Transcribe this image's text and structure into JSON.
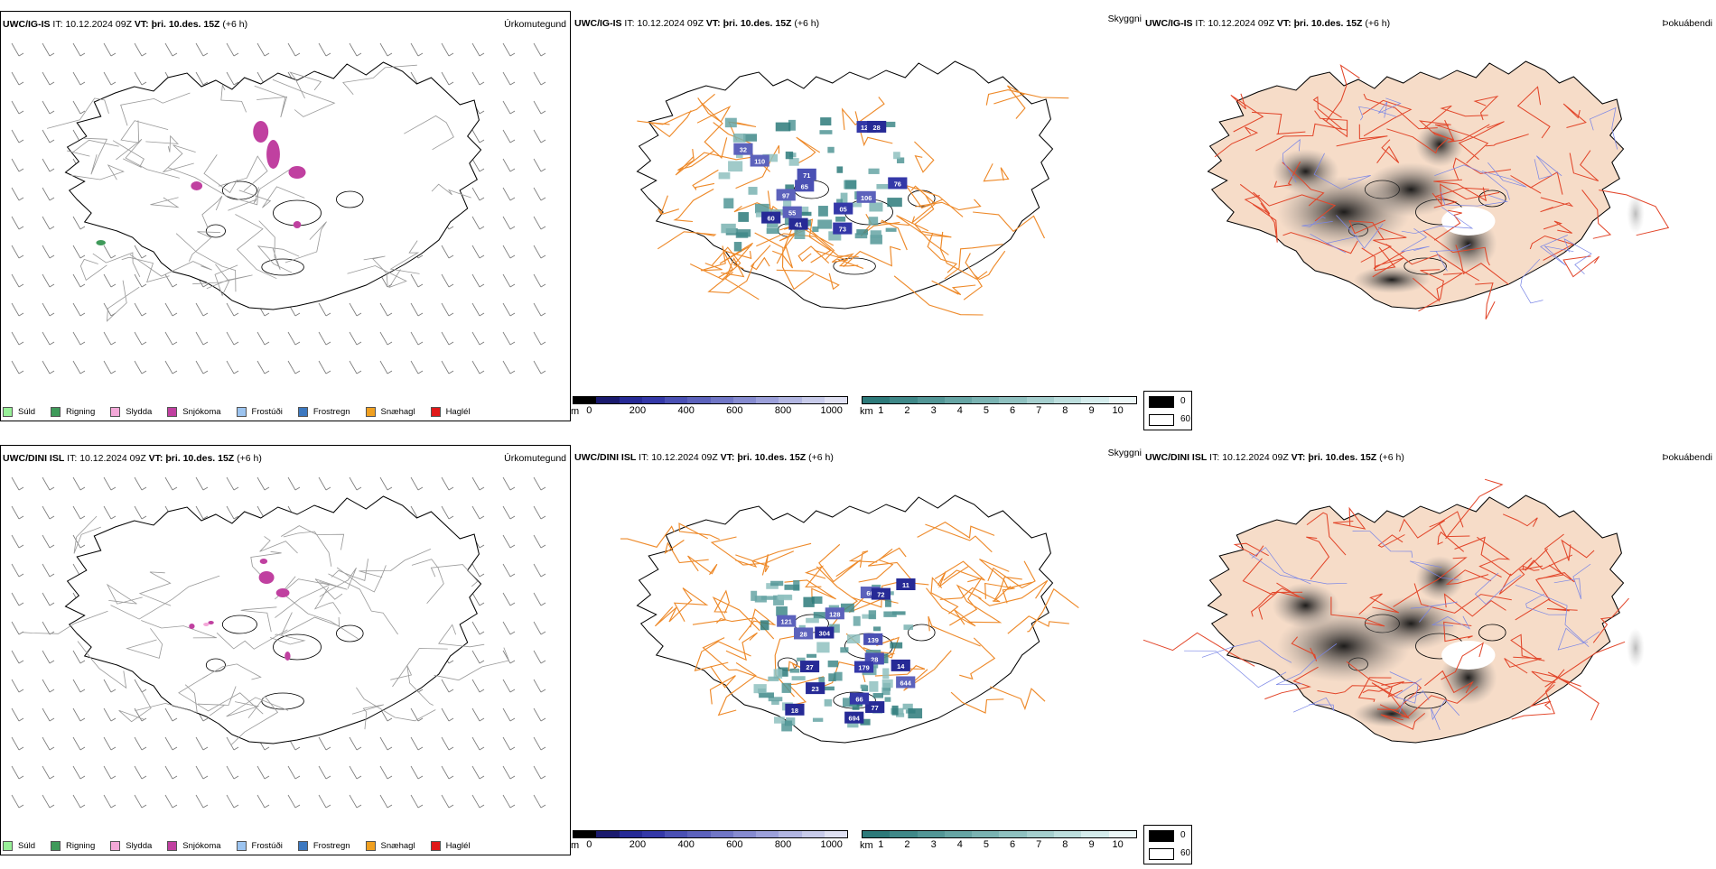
{
  "rows": [
    {
      "panels": [
        {
          "model": "UWC/IG-IS",
          "it_label": "IT:",
          "it_time": "10.12.2024 09Z",
          "vt_label": "VT:",
          "vt_time": "þri. 10.des. 15Z",
          "lead": "(+6 h)",
          "title": "Úrkomutegund"
        },
        {
          "model": "UWC/IG-IS",
          "it_label": "IT:",
          "it_time": "10.12.2024 09Z",
          "vt_label": "VT:",
          "vt_time": "þri. 10.des. 15Z",
          "lead": "(+6 h)",
          "title": "Skyggni"
        },
        {
          "model": "UWC/IG-IS",
          "it_label": "IT:",
          "it_time": "10.12.2024 09Z",
          "vt_label": "VT:",
          "vt_time": "þri. 10.des. 15Z",
          "lead": "(+6 h)",
          "title": "Þokuábendi"
        }
      ],
      "visibility_labels": [
        {
          "t": "73"
        },
        {
          "t": "32"
        },
        {
          "t": "110"
        },
        {
          "t": "97"
        },
        {
          "t": "76"
        },
        {
          "t": "71"
        },
        {
          "t": "60"
        },
        {
          "t": "123"
        },
        {
          "t": "65"
        },
        {
          "t": "05"
        },
        {
          "t": "28"
        },
        {
          "t": "41"
        },
        {
          "t": "106"
        },
        {
          "t": "55"
        }
      ]
    },
    {
      "panels": [
        {
          "model": "UWC/DINI ISL",
          "it_label": "IT:",
          "it_time": "10.12.2024 09Z",
          "vt_label": "VT:",
          "vt_time": "þri. 10.des. 15Z",
          "lead": "(+6 h)",
          "title": "Úrkomutegund"
        },
        {
          "model": "UWC/DINI ISL",
          "it_label": "IT:",
          "it_time": "10.12.2024 09Z",
          "vt_label": "VT:",
          "vt_time": "þri. 10.des. 15Z",
          "lead": "(+6 h)",
          "title": "Skyggni"
        },
        {
          "model": "UWC/DINI ISL",
          "it_label": "IT:",
          "it_time": "10.12.2024 09Z",
          "vt_label": "VT:",
          "vt_time": "þri. 10.des. 15Z",
          "lead": "(+6 h)",
          "title": "Þokuábendi"
        }
      ],
      "visibility_labels": [
        {
          "t": "139"
        },
        {
          "t": "66"
        },
        {
          "t": "77"
        },
        {
          "t": "28"
        },
        {
          "t": "66"
        },
        {
          "t": "23"
        },
        {
          "t": "28"
        },
        {
          "t": "27"
        },
        {
          "t": "304"
        },
        {
          "t": "128"
        },
        {
          "t": "14"
        },
        {
          "t": "18"
        },
        {
          "t": "179"
        },
        {
          "t": "72"
        },
        {
          "t": "644"
        },
        {
          "t": "694"
        },
        {
          "t": "121"
        },
        {
          "t": "11"
        }
      ]
    }
  ],
  "precip_legend": [
    {
      "label": "Súld",
      "color": "#98f098"
    },
    {
      "label": "Rigning",
      "color": "#3f9a5a"
    },
    {
      "label": "Slydda",
      "color": "#f4a8d8"
    },
    {
      "label": "Snjókoma",
      "color": "#c040a0"
    },
    {
      "label": "Frostúði",
      "color": "#9cc4f0"
    },
    {
      "label": "Frostregn",
      "color": "#3c78c0"
    },
    {
      "label": "Snæhagl",
      "color": "#f0a020"
    },
    {
      "label": "Haglél",
      "color": "#e01818"
    }
  ],
  "vis_m_bar": {
    "unit": "m",
    "ticks": [
      "0",
      "200",
      "400",
      "600",
      "800",
      "1000"
    ],
    "colors": [
      "#000000",
      "#1a1a6e",
      "#262a96",
      "#3438a8",
      "#4a50b4",
      "#5c62bc",
      "#7076c6",
      "#868bd0",
      "#9ca0da",
      "#b2b6e2",
      "#c8cbea",
      "#dfe0f2"
    ]
  },
  "vis_km_bar": {
    "unit": "km",
    "ticks": [
      "1",
      "2",
      "3",
      "4",
      "5",
      "6",
      "7",
      "8",
      "9",
      "10"
    ],
    "colors": [
      "#2d7a7a",
      "#3f8888",
      "#529696",
      "#66a5a4",
      "#7ab3b2",
      "#8fc1c0",
      "#a5cfce",
      "#bcdedd",
      "#d4ecec",
      "#ecf7f7"
    ]
  },
  "fog_legend": {
    "max_label": "0",
    "min_label": "60"
  },
  "map_colors": {
    "land": "#ffffff",
    "coast": "#000000",
    "roads_gray": "#9a9a9a",
    "roads_orange": "#ee8a2a",
    "fog_land": "#f6dcc8",
    "fog_roads": "#e2462a",
    "rivers": "#7a86e6"
  }
}
